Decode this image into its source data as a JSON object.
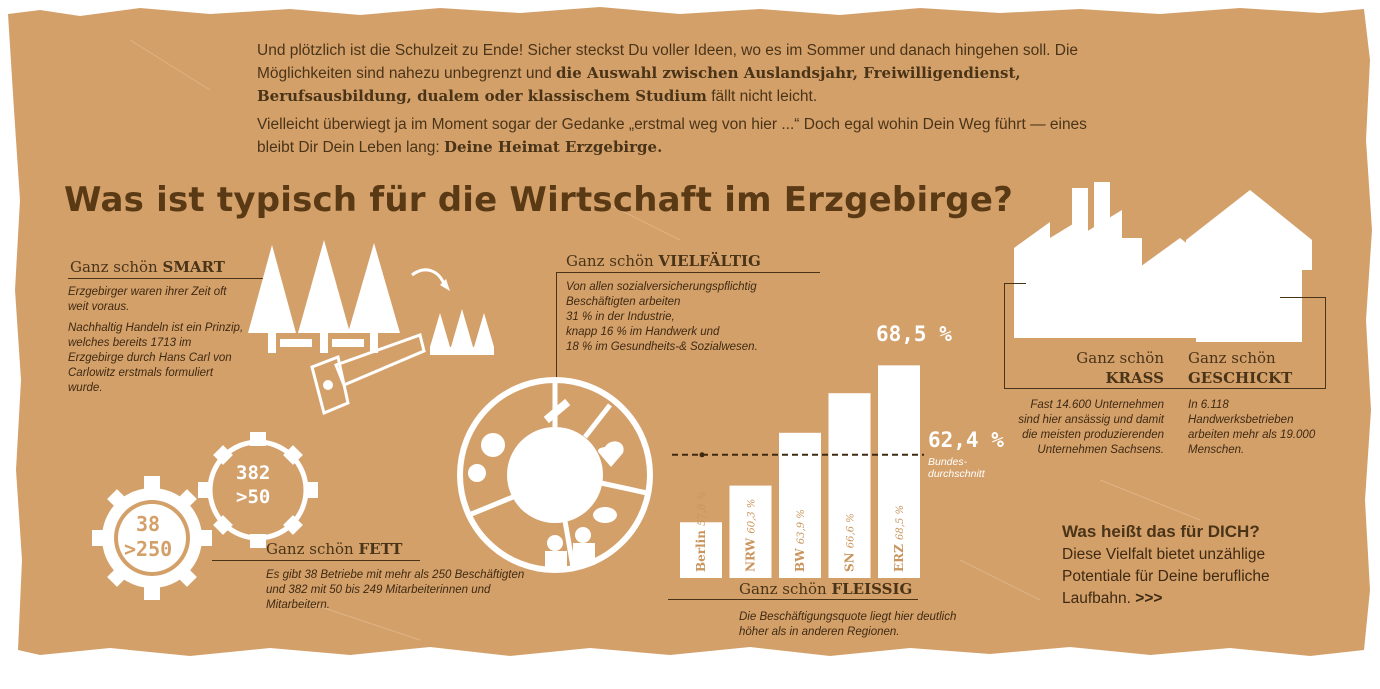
{
  "intro": {
    "p1_a": "Und plötzlich ist die Schulzeit zu Ende! Sicher steckst Du voller Ideen, wo es im Sommer und danach hingehen soll. Die Möglichkeiten sind nahezu unbegrenzt und ",
    "p1_b": "die Auswahl zwischen Auslandsjahr, Freiwilligendienst, Berufsausbildung, dualem oder klassischem Studium",
    "p1_c": " fällt nicht leicht.",
    "p2_a": "Vielleicht überwiegt ja im Moment sogar der Gedanke „erstmal weg von hier ...“ Doch egal wohin Dein Weg führt — eines bleibt Dir Dein Leben lang: ",
    "p2_b": "Deine Heimat Erzgebirge."
  },
  "heading": "Was ist typisch für die Wirtschaft im Erzgebirge?",
  "smart": {
    "prefix": "Ganz schön ",
    "title": "SMART",
    "text1": "Erzgebirger waren ihrer Zeit oft weit voraus.",
    "text2": "Nachhaltig Handeln ist ein Prinzip, welches bereits 1713 im Erzgebirge durch Hans Carl von Carlowitz erstmals formuliert wurde."
  },
  "vielfaeltig": {
    "prefix": "Ganz schön ",
    "title": "VIELFÄLTIG",
    "text1": "Von allen sozialversicherungspflichtig Beschäftigten arbeiten",
    "text2": "31 % in der Industrie,",
    "text3": "knapp 16 % im Handwerk und",
    "text4": "18 % im Gesundheits-& Sozialwesen."
  },
  "fett": {
    "prefix": "Ganz schön ",
    "title": "FETT",
    "gear1_a": "38",
    "gear1_b": ">250",
    "gear2_a": "382",
    "gear2_b": ">50",
    "text": "Es gibt 38 Betriebe mit mehr als 250 Beschäftigten und 382 mit 50 bis 249 Mitarbeiterinnen und Mitarbeitern."
  },
  "fleissig": {
    "prefix": "Ganz schön ",
    "title": "FLEISSIG",
    "text": "Die Beschäftigungsquote liegt hier deutlich höher als in anderen Regionen.",
    "top_label": "68,5 %",
    "avg_label": "62,4 %",
    "avg_sub1": "Bundes-",
    "avg_sub2": "durchschnitt"
  },
  "chart_data": {
    "type": "bar",
    "categories": [
      "Berlin",
      "NRW",
      "BW",
      "SN",
      "ERZ"
    ],
    "value_labels": [
      "57,8 %",
      "60,3 %",
      "63,9 %",
      "66,6 %",
      "68,5 %"
    ],
    "values": [
      57.8,
      60.3,
      63.9,
      66.6,
      68.5
    ],
    "reference": 62.4,
    "ylim": [
      54,
      69
    ]
  },
  "krass": {
    "prefix": "Ganz schön",
    "title": "KRASS",
    "text": "Fast 14.600 Unternehmen sind hier ansässig und damit die meisten produzierenden Unternehmen Sachsens."
  },
  "geschickt": {
    "prefix": "Ganz schön",
    "title": "GESCHICKT",
    "text": "In 6.118 Handwerksbetrieben arbeiten mehr als 19.000 Menschen."
  },
  "cta": {
    "heading": "Was heißt das für DICH?",
    "text": "Diese Vielfalt bietet unzählige Potentiale für Deine berufliche Laufbahn.",
    "link": ">>>"
  },
  "colors": {
    "paper": "#d4a06a",
    "text": "#4a3418",
    "accent": "#ffffff"
  }
}
